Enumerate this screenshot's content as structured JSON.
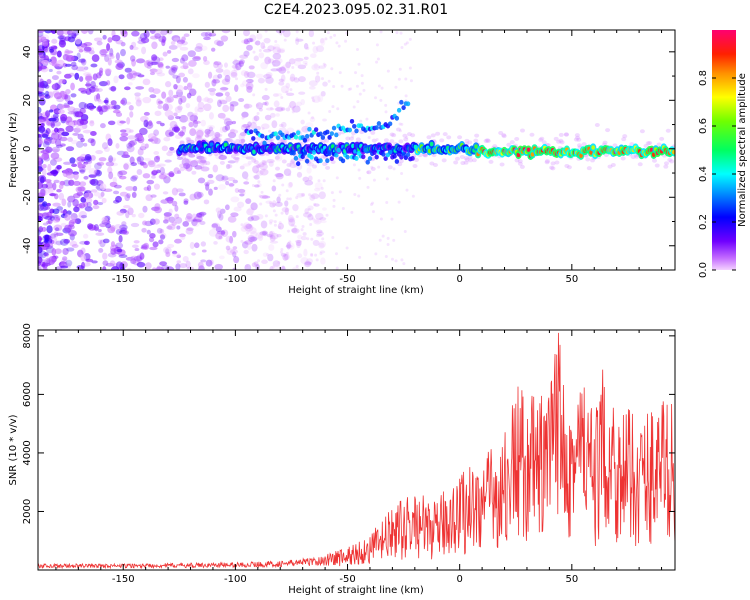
{
  "title": "C2E4.2023.095.02.31.R01",
  "colors": {
    "line": "#ee3333",
    "axis": "#000000",
    "background": "#ffffff"
  },
  "chart_data": [
    {
      "type": "heatmap",
      "xlabel": "Height of straight line (km)",
      "ylabel": "Frequency (Hz)",
      "xlim": [
        -188,
        96
      ],
      "ylim": [
        -50,
        49
      ],
      "xticks": [
        -150,
        -100,
        -50,
        0,
        50
      ],
      "yticks": [
        -40,
        -20,
        0,
        20,
        40
      ],
      "colorbar": {
        "label": "Normalized spectral amplitude",
        "range": [
          0,
          1
        ],
        "ticks": [
          "0.0",
          "0.2",
          "0.4",
          "0.6",
          "0.8"
        ],
        "tick_values": [
          0.0,
          0.2,
          0.4,
          0.6,
          0.8
        ],
        "colormap": "hsv-rainbow"
      },
      "features": {
        "broadband_noise_x_range": [
          -188,
          -60
        ],
        "main_band_center_hz": 0,
        "main_band_x_range": [
          -125,
          96
        ],
        "strongest_band_x_range": [
          8,
          90
        ],
        "strongest_band_frequency_hz": -1,
        "secondary_branch_x": [
          -95,
          -60,
          -45,
          -35,
          -22
        ],
        "secondary_branch_hz": [
          5,
          6,
          9,
          8,
          20
        ]
      }
    },
    {
      "type": "line",
      "xlabel": "Height of straight line (km)",
      "ylabel": "SNR (10 * v/v)",
      "xlim": [
        -188,
        96
      ],
      "ylim": [
        0,
        8200
      ],
      "xticks": [
        -150,
        -100,
        -50,
        0,
        50
      ],
      "yticks": [
        2000,
        4000,
        6000,
        8000
      ],
      "series": [
        {
          "name": "SNR",
          "x": [
            -188,
            -150,
            -100,
            -80,
            -60,
            -50,
            -40,
            -30,
            -20,
            -10,
            -5,
            0,
            5,
            10,
            20,
            25,
            30,
            40,
            45,
            50,
            55,
            60,
            65,
            70,
            80,
            90,
            96
          ],
          "y": [
            200,
            200,
            250,
            300,
            450,
            600,
            900,
            1600,
            2000,
            1700,
            2300,
            2500,
            2800,
            2900,
            3500,
            4800,
            4500,
            4500,
            7200,
            4600,
            5300,
            3800,
            5500,
            4300,
            3900,
            4500,
            4300
          ]
        }
      ]
    }
  ]
}
